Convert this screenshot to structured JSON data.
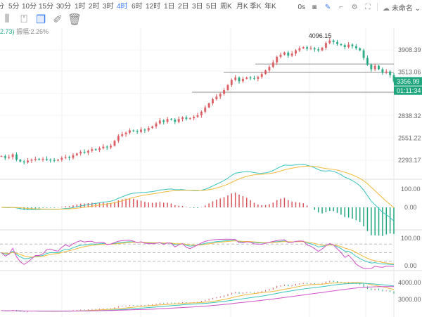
{
  "toolbar": {
    "timeframes": [
      "分",
      "5分",
      "10分",
      "15分",
      "30分",
      "1时",
      "2时",
      "3时",
      "4时",
      "6时",
      "12时",
      "1日",
      "2日",
      "3日",
      "5日",
      "周K",
      "月K",
      "季K",
      "年K"
    ],
    "active": "4时",
    "right": {
      "timer": "0s",
      "workspace": "未命名",
      "icons": [
        "camera-icon",
        "pencil-icon",
        "crop-icon",
        "settings-icon",
        "fullscreen-icon",
        "cloud-icon"
      ]
    },
    "drawing_icons": [
      "columns-icon",
      "lock-icon",
      "copy-icon",
      "edit-icon",
      "trash-icon"
    ]
  },
  "header": {
    "change": "2.73)",
    "amplitude": "振幅:2.26%"
  },
  "colors": {
    "up": "#d9575c",
    "down": "#20a67f",
    "accent": "#3b7cf0",
    "ma1": "#f0b93a",
    "ma2": "#36c3bd",
    "ma3": "#d050c8"
  },
  "chart_data": [
    {
      "type": "candlestick",
      "scale": "log",
      "yticks": [
        "3908.39",
        "3513.06",
        "2838.32",
        "2551.22",
        "2293.17"
      ],
      "ytick_values": [
        3908.39,
        3513.06,
        2838.32,
        2551.22,
        2293.17
      ],
      "closes": [
        2340,
        2320,
        2330,
        2360,
        2300,
        2280,
        2270,
        2290,
        2300,
        2310,
        2300,
        2310,
        2300,
        2295,
        2290,
        2300,
        2320,
        2330,
        2320,
        2350,
        2370,
        2390,
        2380,
        2400,
        2420,
        2410,
        2430,
        2450,
        2440,
        2460,
        2520,
        2580,
        2600,
        2620,
        2650,
        2640,
        2630,
        2660,
        2650,
        2680,
        2700,
        2740,
        2780,
        2760,
        2800,
        2790,
        2760,
        2800,
        2820,
        2800,
        2810,
        2830,
        2850,
        2900,
        2960,
        3020,
        3080,
        3120,
        3160,
        3220,
        3300,
        3380,
        3420,
        3360,
        3400,
        3420,
        3410,
        3400,
        3430,
        3480,
        3540,
        3600,
        3680,
        3780,
        3820,
        3860,
        3800,
        3840,
        3900,
        3940,
        3960,
        3930,
        3940,
        3920,
        3900,
        3950,
        4040,
        4090,
        4060,
        4020,
        4000,
        3960,
        4010,
        3980,
        3940,
        3900,
        3760,
        3640,
        3560,
        3620,
        3560,
        3500,
        3520,
        3460,
        3356.99
      ],
      "high_label": "4096.15",
      "hlines": [
        3651,
        3504,
        3187
      ],
      "last_price": "3356.99",
      "countdown": "01:11:34"
    },
    {
      "type": "macd",
      "yticks": [
        "100.00",
        "0.00"
      ]
    },
    {
      "type": "kdj",
      "yticks": [
        "100.00",
        "0.00"
      ],
      "levels": [
        80,
        50,
        20
      ]
    },
    {
      "type": "ma",
      "yticks": [
        "4000.00",
        "3000.00"
      ],
      "ytick_values": [
        4000,
        3000
      ]
    }
  ]
}
